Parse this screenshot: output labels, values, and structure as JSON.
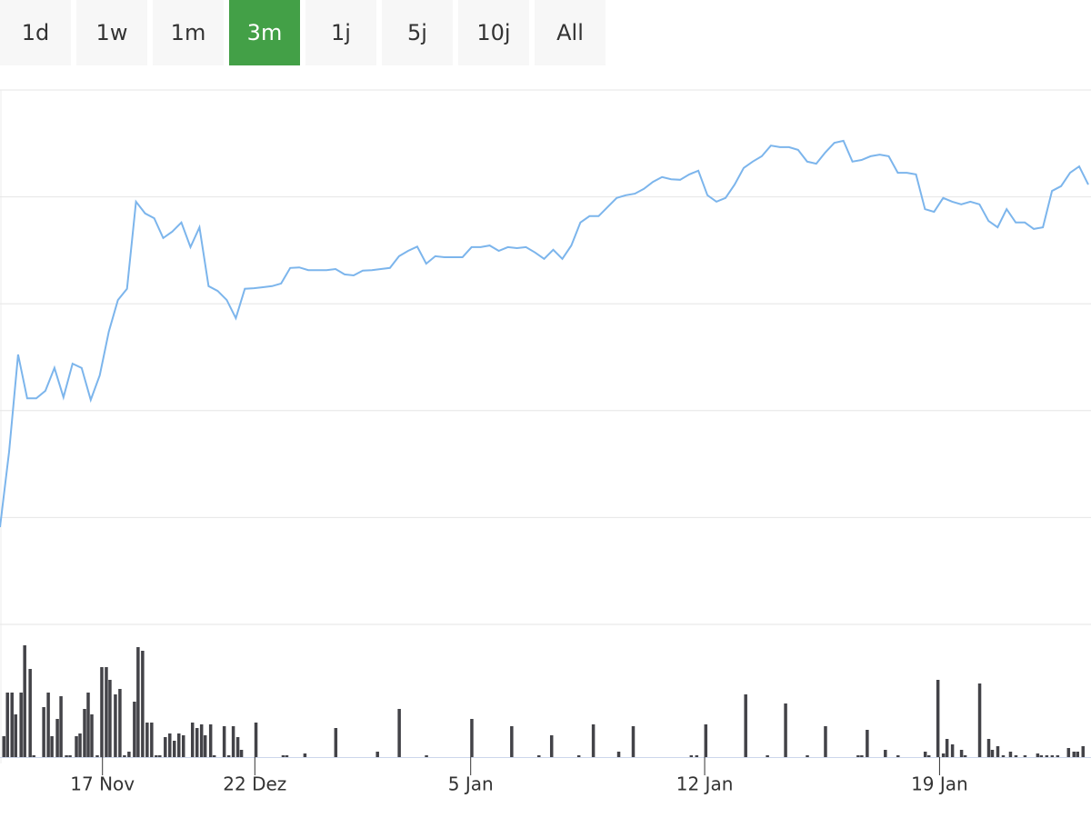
{
  "range_buttons": {
    "labels": [
      "1d",
      "1w",
      "1m",
      "3m",
      "1j",
      "5j",
      "10j",
      "All"
    ],
    "active": 3
  },
  "chart_data": [
    {
      "type": "line",
      "color": "#7cb5ec",
      "grid": true,
      "xlim": [
        0,
        120
      ],
      "ylim": [
        0,
        100
      ],
      "yticks": [
        0,
        20,
        40,
        60,
        80,
        100
      ],
      "values": [
        18.2,
        32.3,
        50.5,
        42.3,
        42.3,
        43.7,
        48.0,
        42.5,
        48.8,
        48.0,
        42.0,
        46.6,
        54.8,
        60.7,
        62.8,
        79.1,
        76.9,
        76.0,
        72.3,
        73.5,
        75.2,
        70.6,
        74.3,
        63.3,
        62.4,
        60.7,
        57.3,
        62.8,
        62.9,
        63.1,
        63.3,
        63.8,
        66.7,
        66.8,
        66.3,
        66.3,
        66.3,
        66.5,
        65.5,
        65.3,
        66.2,
        66.3,
        66.5,
        66.7,
        68.9,
        69.9,
        70.7,
        67.5,
        68.9,
        68.7,
        68.7,
        68.7,
        70.6,
        70.6,
        70.9,
        69.9,
        70.6,
        70.4,
        70.6,
        69.6,
        68.4,
        70.1,
        68.4,
        70.9,
        75.2,
        76.4,
        76.4,
        78.1,
        79.8,
        80.3,
        80.6,
        81.5,
        82.8,
        83.7,
        83.3,
        83.2,
        84.2,
        84.9,
        80.3,
        79.1,
        79.8,
        82.3,
        85.4,
        86.6,
        87.6,
        89.6,
        89.3,
        89.3,
        88.8,
        86.6,
        86.2,
        88.3,
        90.1,
        90.5,
        86.6,
        86.9,
        87.6,
        87.9,
        87.6,
        84.5,
        84.5,
        84.2,
        77.7,
        77.2,
        79.8,
        79.1,
        78.6,
        79.1,
        78.6,
        75.5,
        74.3,
        77.7,
        75.2,
        75.2,
        74.0,
        74.3,
        81.1,
        82.0,
        84.5,
        85.7,
        82.3
      ]
    },
    {
      "type": "bar",
      "color": "#434348",
      "xlim": [
        0,
        120
      ],
      "ylim": [
        0,
        130
      ],
      "xticks": [
        {
          "value": 11.3,
          "label": "17 Nov"
        },
        {
          "value": 28.1,
          "label": "22 Dez"
        },
        {
          "value": 51.9,
          "label": "5 Jan"
        },
        {
          "value": 77.7,
          "label": "12 Jan"
        },
        {
          "value": 103.6,
          "label": "19 Jan"
        }
      ],
      "x": [
        0.4,
        0.8,
        1.3,
        1.7,
        2.3,
        2.7,
        3.3,
        3.7,
        4.8,
        5.3,
        5.7,
        6.3,
        6.7,
        7.3,
        7.7,
        8.4,
        8.8,
        9.3,
        9.7,
        10.1,
        10.7,
        11.2,
        11.7,
        12.1,
        12.7,
        13.2,
        13.7,
        14.2,
        14.8,
        15.2,
        15.7,
        16.2,
        16.7,
        17.2,
        17.6,
        18.2,
        18.7,
        19.2,
        19.7,
        20.2,
        21.2,
        21.7,
        22.2,
        22.6,
        23.2,
        23.6,
        24.7,
        25.2,
        25.7,
        26.2,
        26.6,
        28.2,
        31.2,
        31.6,
        33.6,
        37,
        41.6,
        44,
        47,
        52,
        56.4,
        59.4,
        60.8,
        63.8,
        65.4,
        68.2,
        69.8,
        76.2,
        76.8,
        77.8,
        82.2,
        84.6,
        86.6,
        89,
        91,
        94.6,
        95,
        95.6,
        97.6,
        99,
        102,
        102.4,
        103.4,
        104,
        104.4,
        105,
        106,
        106.4,
        108,
        109,
        109.4,
        110,
        110.6,
        111.4,
        112,
        113,
        114.4,
        114.8,
        115.4,
        116,
        116.6,
        117.8,
        118.4,
        118.8,
        119.4
      ],
      "values": [
        23,
        71,
        71,
        47,
        71,
        123,
        97,
        2,
        55,
        71,
        23,
        42,
        67,
        2,
        2,
        23,
        26,
        53,
        71,
        47,
        2,
        99,
        99,
        85,
        69,
        75,
        2,
        6,
        61,
        121,
        117,
        38,
        38,
        2,
        2,
        22,
        26,
        18,
        26,
        24,
        38,
        32,
        36,
        24,
        36,
        2,
        34,
        2,
        34,
        22,
        8,
        38,
        2,
        2,
        4,
        32,
        6,
        53,
        2,
        42,
        34,
        2,
        24,
        2,
        36,
        6,
        34,
        2,
        2,
        36,
        69,
        2,
        59,
        2,
        34,
        2,
        2,
        30,
        8,
        2,
        6,
        2,
        85,
        4,
        20,
        14,
        8,
        2,
        81,
        20,
        8,
        12,
        2,
        6,
        2,
        2,
        4,
        2,
        2,
        2,
        2,
        10,
        6,
        6,
        12
      ]
    }
  ]
}
